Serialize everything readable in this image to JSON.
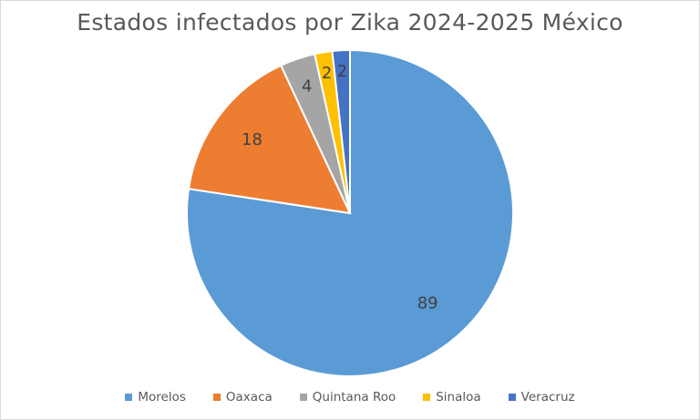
{
  "chart_data": {
    "type": "pie",
    "title": "Estados infectados por Zika 2024-2025 México",
    "categories": [
      "Morelos",
      "Oaxaca",
      "Quintana Roo",
      "Sinaloa",
      "Veracruz"
    ],
    "values": [
      89,
      18,
      4,
      2,
      2
    ],
    "data_labels": [
      "89",
      "18",
      "4",
      "2",
      "2"
    ],
    "colors": [
      "#5b9bd5",
      "#ed7d31",
      "#a5a5a5",
      "#ffc000",
      "#4472c4"
    ],
    "legend_placement": "bottom",
    "start_angle": "12 o'clock, clockwise"
  }
}
